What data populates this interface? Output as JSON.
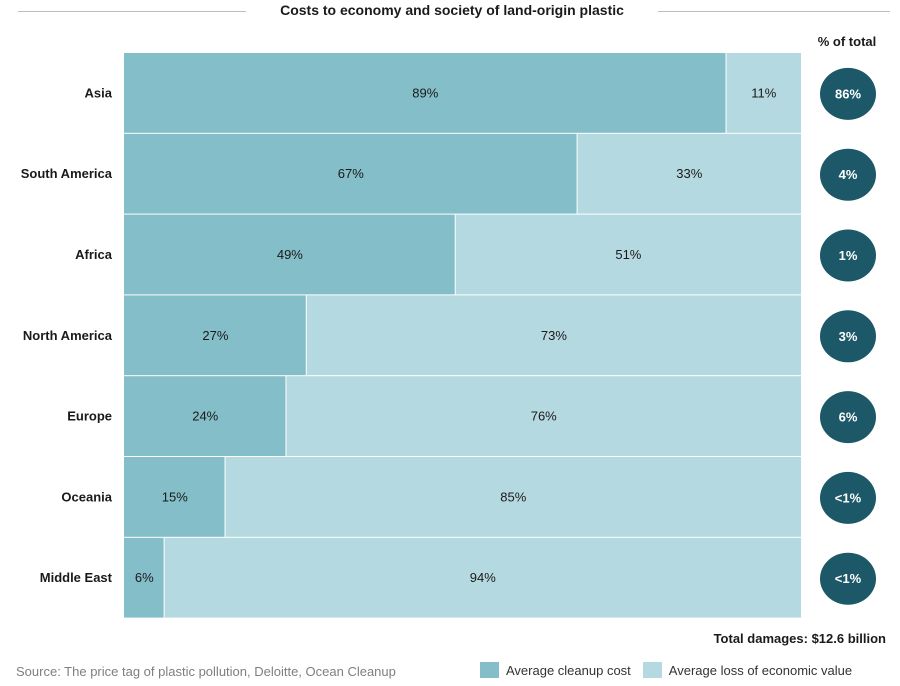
{
  "header": {
    "title": "Costs to economy and society of land-origin plastic",
    "pct_header": "% of total"
  },
  "chart_data": {
    "type": "bar",
    "stacked": true,
    "orientation": "horizontal",
    "categories": [
      "Asia",
      "South America",
      "Africa",
      "North America",
      "Europe",
      "Oceania",
      "Middle East"
    ],
    "series": [
      {
        "name": "Average cleanup cost",
        "values": [
          89,
          67,
          49,
          27,
          24,
          15,
          6
        ],
        "labels": [
          "89%",
          "67%",
          "49%",
          "27%",
          "24%",
          "15%",
          "6%"
        ],
        "color": "#84bec9"
      },
      {
        "name": "Average loss of economic value",
        "values": [
          11,
          33,
          51,
          73,
          76,
          85,
          94
        ],
        "labels": [
          "11%",
          "33%",
          "51%",
          "73%",
          "76%",
          "85%",
          "94%"
        ],
        "color": "#b5d9e0"
      }
    ],
    "share_of_total": [
      "86%",
      "4%",
      "1%",
      "3%",
      "6%",
      "<1%",
      "<1%"
    ],
    "xlim": [
      0,
      100
    ],
    "grid": false,
    "legend_position": "bottom-right"
  },
  "colors": {
    "bubble": "#1c5868",
    "bubble_text": "#ffffff"
  },
  "footer": {
    "total": "Total damages: $12.6 billion",
    "source": "Source: The price tag of plastic pollution, Deloitte, Ocean Cleanup"
  }
}
